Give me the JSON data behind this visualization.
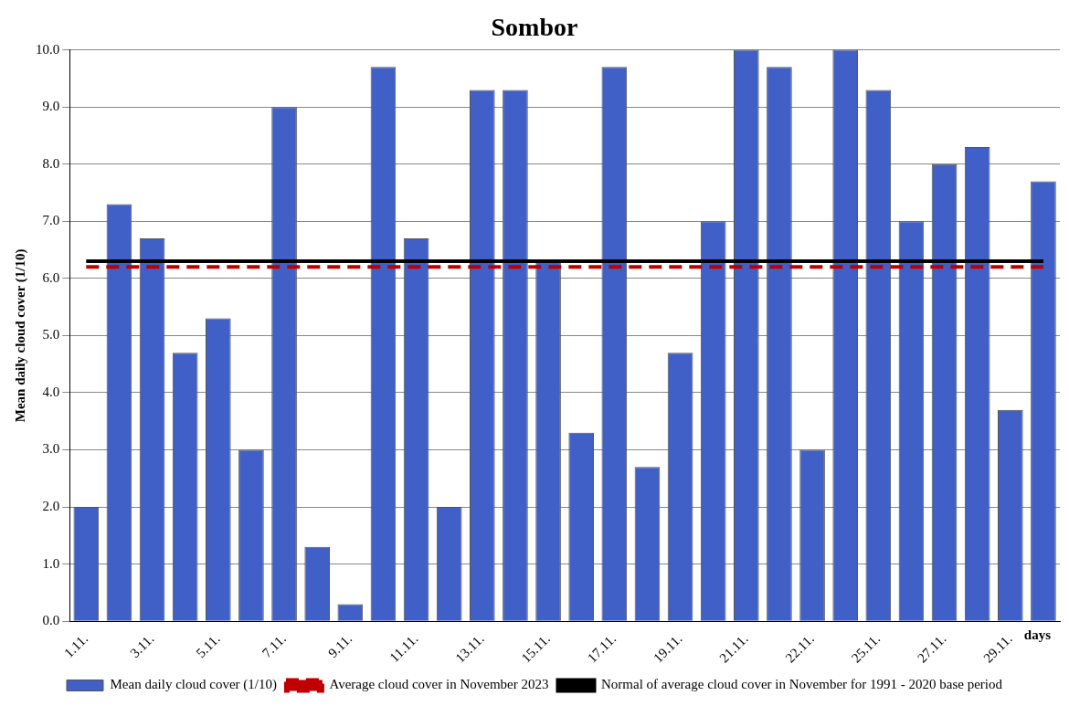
{
  "chart_data": {
    "type": "bar",
    "title": "Sombor",
    "ylabel": "Mean daily cloud cover (1/10)",
    "xlabel": "days",
    "categories": [
      "1.11.",
      null,
      "3.11.",
      null,
      "5.11.",
      null,
      "7.11.",
      null,
      "9.11.",
      null,
      "11.11.",
      null,
      "13.11.",
      null,
      "15.11.",
      null,
      "17.11.",
      null,
      "19.11.",
      null,
      "21.11.",
      null,
      "22.11.",
      null,
      "25.11.",
      null,
      "27.11.",
      null,
      "29.11.",
      null
    ],
    "series": [
      {
        "name": "Mean daily cloud cover (1/10)",
        "color": "#4060c8",
        "values": [
          2.0,
          7.3,
          6.7,
          4.7,
          5.3,
          3.0,
          9.0,
          1.3,
          0.3,
          9.7,
          6.7,
          2.0,
          9.3,
          9.3,
          6.3,
          3.3,
          9.7,
          2.7,
          4.7,
          7.0,
          10.0,
          9.7,
          3.0,
          10.0,
          9.3,
          7.0,
          8.0,
          8.3,
          3.7,
          7.7
        ]
      },
      {
        "type": "line",
        "name": "Average cloud cover in November 2023",
        "color": "#c00000",
        "line_style": "dashed",
        "values": [
          6.2,
          6.2,
          6.2,
          6.2,
          6.2,
          6.2,
          6.2,
          6.2,
          6.2,
          6.2,
          6.2,
          6.2,
          6.2,
          6.2,
          6.2,
          6.2,
          6.2,
          6.2,
          6.2,
          6.2,
          6.2,
          6.2,
          6.2,
          6.2,
          6.2,
          6.2,
          6.2,
          6.2,
          6.2,
          6.2
        ]
      },
      {
        "type": "line",
        "name": "Normal of average cloud cover in November for 1991 - 2020 base period",
        "color": "#000000",
        "line_style": "solid",
        "values": [
          6.3,
          6.3,
          6.3,
          6.3,
          6.3,
          6.3,
          6.3,
          6.3,
          6.3,
          6.3,
          6.3,
          6.3,
          6.3,
          6.3,
          6.3,
          6.3,
          6.3,
          6.3,
          6.3,
          6.3,
          6.3,
          6.3,
          6.3,
          6.3,
          6.3,
          6.3,
          6.3,
          6.3,
          6.3,
          6.3
        ]
      }
    ],
    "ylim": [
      0,
      10
    ],
    "yticks": [
      {
        "value": 0,
        "label": "0.0"
      },
      {
        "value": 1,
        "label": "1.0"
      },
      {
        "value": 2,
        "label": "2.0"
      },
      {
        "value": 3,
        "label": "3.0"
      },
      {
        "value": 4,
        "label": "4.0"
      },
      {
        "value": 5,
        "label": "5.0"
      },
      {
        "value": 6,
        "label": "6.0"
      },
      {
        "value": 7,
        "label": "7.0"
      },
      {
        "value": 8,
        "label": "8.0"
      },
      {
        "value": 9,
        "label": "9.0"
      },
      {
        "value": 10,
        "label": "10.0"
      }
    ],
    "grid": "y",
    "legend": "bottom"
  }
}
